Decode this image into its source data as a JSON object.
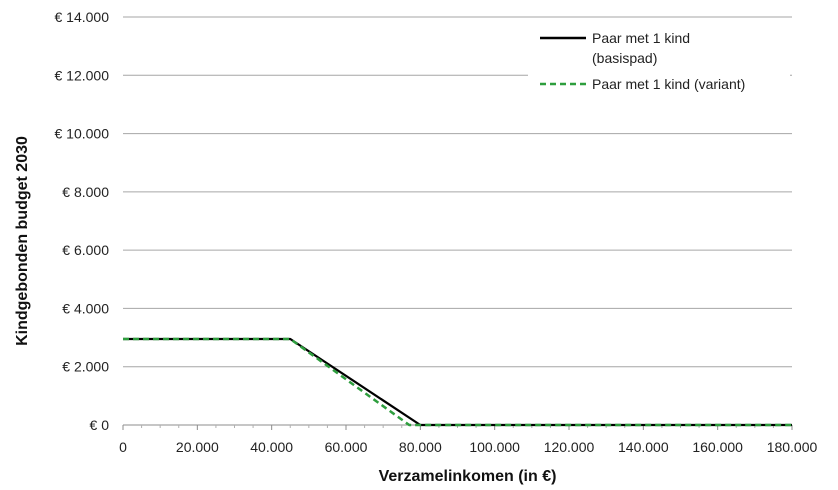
{
  "chart_data": {
    "type": "line",
    "title": "",
    "xlabel": "Verzamelinkomen (in €)",
    "ylabel": "Kindgebonden budget 2030",
    "xlim": [
      0,
      180000
    ],
    "ylim": [
      0,
      14000
    ],
    "x_ticks": [
      0,
      20000,
      40000,
      60000,
      80000,
      100000,
      120000,
      140000,
      160000,
      180000
    ],
    "x_tick_labels": [
      "0",
      "20.000",
      "40.000",
      "60.000",
      "80.000",
      "100.000",
      "120.000",
      "140.000",
      "160.000",
      "180.000"
    ],
    "y_ticks": [
      0,
      2000,
      4000,
      6000,
      8000,
      10000,
      12000,
      14000
    ],
    "y_tick_labels": [
      "€ 0",
      "€ 2.000",
      "€ 4.000",
      "€ 6.000",
      "€ 8.000",
      "€ 10.000",
      "€ 12.000",
      "€ 14.000"
    ],
    "grid": "horizontal",
    "legend_position": "top-right",
    "series": [
      {
        "name": "Paar met 1 kind (basispad)",
        "name_lines": [
          "Paar met 1 kind",
          "(basispad)"
        ],
        "color": "#000000",
        "style": "solid",
        "x": [
          0,
          45000,
          80000,
          180000
        ],
        "y": [
          2950,
          2950,
          0,
          0
        ]
      },
      {
        "name": "Paar met 1 kind (variant)",
        "name_lines": [
          "Paar met 1 kind (variant)"
        ],
        "color": "#2e9e3e",
        "style": "dashed",
        "x": [
          0,
          45000,
          77000,
          180000
        ],
        "y": [
          2950,
          2950,
          0,
          0
        ]
      }
    ]
  }
}
